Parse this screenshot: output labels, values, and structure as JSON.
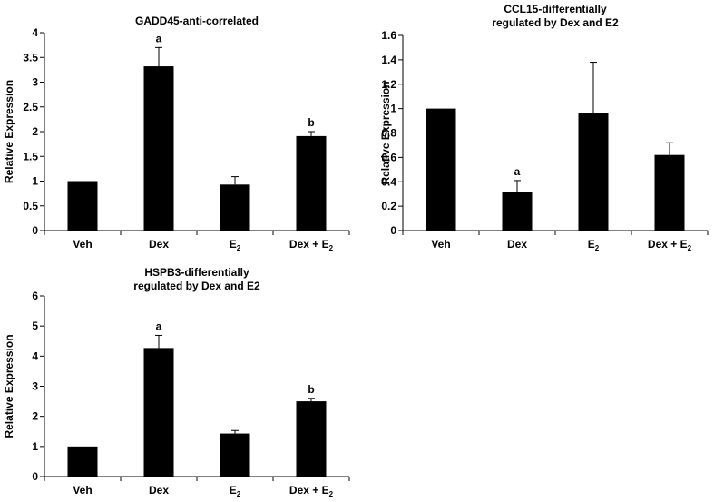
{
  "chart_data": [
    {
      "type": "bar",
      "title_lines": [
        "GADD45-anti-correlated"
      ],
      "ylabel": "Relative Expression",
      "categories": [
        {
          "label": "Veh",
          "sub": ""
        },
        {
          "label": "Dex",
          "sub": ""
        },
        {
          "label": "E",
          "sub": "2"
        },
        {
          "label": "Dex + E",
          "sub": "2"
        }
      ],
      "values": [
        1.0,
        3.32,
        0.93,
        1.91
      ],
      "errors": [
        0,
        0.38,
        0.16,
        0.09
      ],
      "annotations": [
        "",
        "a",
        "",
        "b"
      ],
      "ylim": [
        0,
        4
      ],
      "yticks": [
        "0",
        "0.5",
        "1",
        "1.5",
        "2",
        "2.5",
        "3",
        "3.5",
        "4"
      ]
    },
    {
      "type": "bar",
      "title_lines": [
        "CCL15-differentially",
        "regulated by Dex and E2"
      ],
      "ylabel": "Relative Expression",
      "categories": [
        {
          "label": "Veh",
          "sub": ""
        },
        {
          "label": "Dex",
          "sub": ""
        },
        {
          "label": "E",
          "sub": "2"
        },
        {
          "label": "Dex + E",
          "sub": "2"
        }
      ],
      "values": [
        1.0,
        0.32,
        0.96,
        0.62
      ],
      "errors": [
        0,
        0.09,
        0.42,
        0.1
      ],
      "annotations": [
        "",
        "a",
        "",
        ""
      ],
      "ylim": [
        0,
        1.6
      ],
      "yticks": [
        "0",
        "0.2",
        "0.4",
        "0.6",
        "0.8",
        "1",
        "1.2",
        "1.4",
        "1.6"
      ]
    },
    {
      "type": "bar",
      "title_lines": [
        "HSPB3-differentially",
        "regulated by Dex and E2"
      ],
      "ylabel": "Relative Expression",
      "categories": [
        {
          "label": "Veh",
          "sub": ""
        },
        {
          "label": "Dex",
          "sub": ""
        },
        {
          "label": "E",
          "sub": "2"
        },
        {
          "label": "Dex + E",
          "sub": "2"
        }
      ],
      "values": [
        1.0,
        4.27,
        1.43,
        2.5
      ],
      "errors": [
        0,
        0.42,
        0.1,
        0.1
      ],
      "annotations": [
        "",
        "a",
        "",
        "b"
      ],
      "ylim": [
        0,
        6
      ],
      "yticks": [
        "0",
        "1",
        "2",
        "3",
        "4",
        "5",
        "6"
      ]
    }
  ]
}
